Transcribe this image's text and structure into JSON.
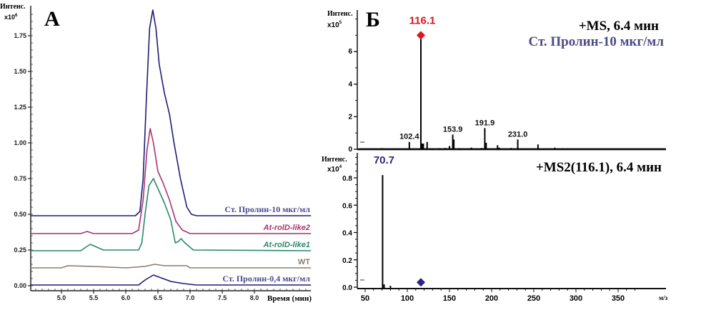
{
  "chart_data": [
    {
      "type": "line",
      "panel_label": "А",
      "ylabel": "Интенс.",
      "yunit": "x10",
      "yunit_exp": "6",
      "xlabel": "Время (мин)",
      "xlim": [
        4.52,
        8.88
      ],
      "ylim": [
        0,
        1.97
      ],
      "xticks": [
        "5.0",
        "5.5",
        "6.0",
        "6.5",
        "7.0",
        "7.5",
        "8.0"
      ],
      "yticks": [
        "0.00",
        "0.25",
        "0.50",
        "0.75",
        "1.00",
        "1.25",
        "1.50",
        "1.75"
      ],
      "grid": false,
      "series": [
        {
          "name": "Ст. Пролин-10 мкг/мл",
          "color": "#1e1a78",
          "label_color": "#4b4a8c",
          "label_style": "serif",
          "x": [
            4.52,
            6.15,
            6.22,
            6.27,
            6.32,
            6.37,
            6.42,
            6.47,
            6.52,
            6.6,
            6.68,
            6.75,
            6.85,
            6.95,
            7.02,
            7.1,
            8.88
          ],
          "y": [
            0.49,
            0.49,
            0.52,
            0.75,
            1.3,
            1.8,
            1.93,
            1.8,
            1.55,
            1.35,
            1.2,
            1.0,
            0.75,
            0.55,
            0.5,
            0.49,
            0.49
          ]
        },
        {
          "name": "At-rolD-like2",
          "color": "#a8336f",
          "label_color": "#a8336f",
          "label_style": "sans-italic",
          "x": [
            4.52,
            5.3,
            5.4,
            5.5,
            6.1,
            6.2,
            6.27,
            6.33,
            6.38,
            6.43,
            6.5,
            6.58,
            6.68,
            6.78,
            6.88,
            7.0,
            8.88
          ],
          "y": [
            0.365,
            0.365,
            0.38,
            0.365,
            0.365,
            0.39,
            0.6,
            0.95,
            1.1,
            1.0,
            0.8,
            0.72,
            0.6,
            0.45,
            0.39,
            0.365,
            0.365
          ]
        },
        {
          "name": "At-rolD-like1",
          "color": "#2b876a",
          "label_color": "#2b876a",
          "label_style": "sans-italic",
          "x": [
            4.52,
            5.3,
            5.38,
            5.45,
            5.55,
            5.65,
            6.2,
            6.25,
            6.3,
            6.36,
            6.43,
            6.5,
            6.6,
            6.7,
            6.77,
            6.82,
            6.86,
            6.92,
            7.05,
            8.88
          ],
          "y": [
            0.245,
            0.245,
            0.27,
            0.29,
            0.27,
            0.25,
            0.25,
            0.3,
            0.5,
            0.7,
            0.75,
            0.68,
            0.58,
            0.46,
            0.3,
            0.31,
            0.33,
            0.3,
            0.25,
            0.245
          ]
        },
        {
          "name": "WT",
          "color": "#8a7b72",
          "label_color": "#8a7b72",
          "label_style": "sans",
          "x": [
            4.52,
            5.0,
            5.1,
            5.5,
            6.0,
            6.3,
            6.45,
            6.6,
            6.95,
            7.0,
            8.88
          ],
          "y": [
            0.125,
            0.125,
            0.14,
            0.135,
            0.125,
            0.135,
            0.15,
            0.14,
            0.14,
            0.125,
            0.125
          ]
        },
        {
          "name": "Ст. Пролин-0,4 мкг/мл",
          "color": "#1e1a78",
          "label_color": "#4b4a8c",
          "label_style": "serif",
          "x": [
            4.52,
            6.2,
            6.3,
            6.43,
            6.55,
            6.7,
            6.9,
            7.1,
            8.88
          ],
          "y": [
            0.005,
            0.005,
            0.04,
            0.075,
            0.055,
            0.03,
            0.015,
            0.005,
            0.005
          ]
        }
      ]
    },
    {
      "type": "bar",
      "panel_label": "Б",
      "title": "+MS, 6.4 мин",
      "subtitle": "Ст. Пролин-10 мкг/мл",
      "subtitle_color": "#4b4a8c",
      "ylabel": "Интенс.",
      "yunit": "x10",
      "yunit_exp": "5",
      "ylim": [
        0,
        8.8
      ],
      "yticks": [
        "0",
        "2",
        "4",
        "6"
      ],
      "xlim": [
        40,
        400
      ],
      "precursor_marker": {
        "mz": 116.1,
        "color": "#e0141c"
      },
      "peaks": [
        {
          "mz": 70.0,
          "value": 0.07
        },
        {
          "mz": 85.0,
          "value": 0.04
        },
        {
          "mz": 102.4,
          "value": 0.45,
          "label": "102.4"
        },
        {
          "mz": 116.1,
          "value": 7.0,
          "label": "116.1",
          "label_color": "#e0141c"
        },
        {
          "mz": 117.5,
          "value": 0.35
        },
        {
          "mz": 119.0,
          "value": 0.35
        },
        {
          "mz": 123.5,
          "value": 0.45
        },
        {
          "mz": 130.0,
          "value": 0.05
        },
        {
          "mz": 138.0,
          "value": 0.07
        },
        {
          "mz": 145.0,
          "value": 0.08
        },
        {
          "mz": 150.0,
          "value": 0.2
        },
        {
          "mz": 153.9,
          "value": 0.9,
          "label": "153.9"
        },
        {
          "mz": 155.2,
          "value": 0.6
        },
        {
          "mz": 162.0,
          "value": 0.07
        },
        {
          "mz": 176.0,
          "value": 0.1
        },
        {
          "mz": 188.0,
          "value": 0.08
        },
        {
          "mz": 191.9,
          "value": 1.3,
          "label": "191.9"
        },
        {
          "mz": 193.5,
          "value": 0.4
        },
        {
          "mz": 207.0,
          "value": 0.25
        },
        {
          "mz": 209.0,
          "value": 0.1
        },
        {
          "mz": 223.0,
          "value": 0.08
        },
        {
          "mz": 231.0,
          "value": 0.6,
          "label": "231.0"
        },
        {
          "mz": 240.0,
          "value": 0.05
        },
        {
          "mz": 255.0,
          "value": 0.3
        },
        {
          "mz": 275.0,
          "value": 0.1
        },
        {
          "mz": 285.0,
          "value": 0.06
        },
        {
          "mz": 290.0,
          "value": 0.05
        },
        {
          "mz": 345.0,
          "value": 0.02
        }
      ]
    },
    {
      "type": "bar",
      "title": "+MS2(116.1), 6.4 мин",
      "ylabel": "Интенс.",
      "yunit": "x10",
      "yunit_exp": "4",
      "xlabel": "м/з",
      "ylim": [
        0,
        1.0
      ],
      "yticks": [
        "0.0",
        "0.2",
        "0.4",
        "0.6",
        "0.8"
      ],
      "xlim": [
        40,
        400
      ],
      "xticks": [
        "50",
        "100",
        "150",
        "200",
        "250",
        "300",
        "350"
      ],
      "precursor_marker": {
        "mz": 116.1,
        "value": 0.035,
        "color": "#2a2880"
      },
      "peaks": [
        {
          "mz": 70.7,
          "value": 0.82,
          "label": "70.7",
          "label_color": "#2a2880"
        },
        {
          "mz": 72.5,
          "value": 0.02
        },
        {
          "mz": 80.0,
          "value": 0.01
        }
      ]
    }
  ]
}
